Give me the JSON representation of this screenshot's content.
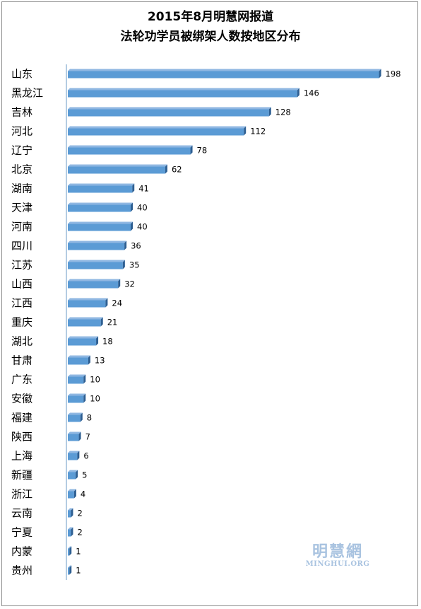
{
  "chart_data": {
    "type": "bar",
    "orientation": "horizontal",
    "title": "2015年8月明慧网报道",
    "subtitle": "法轮功学员被绑架人数按地区分布",
    "categories": [
      "山东",
      "黑龙江",
      "吉林",
      "河北",
      "辽宁",
      "北京",
      "湖南",
      "天津",
      "河南",
      "四川",
      "江苏",
      "山西",
      "江西",
      "重庆",
      "湖北",
      "甘肃",
      "广东",
      "安徽",
      "福建",
      "陕西",
      "上海",
      "新疆",
      "浙江",
      "云南",
      "宁夏",
      "内蒙",
      "贵州"
    ],
    "values": [
      198,
      146,
      128,
      112,
      78,
      62,
      41,
      40,
      40,
      36,
      35,
      32,
      24,
      21,
      18,
      13,
      10,
      10,
      8,
      7,
      6,
      5,
      4,
      2,
      2,
      1,
      1
    ],
    "xlim": [
      0,
      200
    ],
    "grid": false,
    "legend": "none",
    "data_labels": true,
    "colors": {
      "bar_front": "#5b9bd5",
      "bar_top": "#8fb7e2",
      "bar_end": "#2e5f92"
    }
  },
  "watermark": {
    "cn": "明慧網",
    "en": "MINGHUI.ORG"
  }
}
